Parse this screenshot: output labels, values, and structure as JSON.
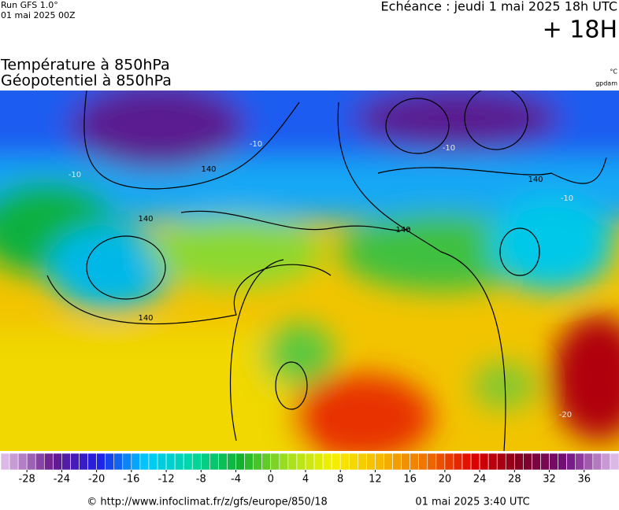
{
  "header": {
    "run": "Run GFS 1.0°",
    "run_date": "01 mai 2025 00Z",
    "valid": "Echéance : jeudi 1 mai 2025 18h UTC",
    "step": "+ 18H"
  },
  "titles": {
    "line1": "Température à 850hPa",
    "line2": "Géopotentiel à 850hPa",
    "unit1": "°C",
    "unit2": "gpdam"
  },
  "contour_labels": [
    "140",
    "140",
    "140",
    "140",
    "140",
    "-10",
    "-10",
    "-10",
    "-10",
    "-20"
  ],
  "colorbar": {
    "range": [
      -31,
      40
    ],
    "ticks": [
      -28,
      -24,
      -20,
      -16,
      -12,
      -8,
      -4,
      0,
      4,
      8,
      12,
      16,
      20,
      24,
      28,
      32,
      36
    ],
    "colors": [
      "#dcb8e6",
      "#6a1b8a",
      "#1e1ee6",
      "#00c8ff",
      "#00d8a0",
      "#12b030",
      "#a0e020",
      "#f7f000",
      "#f5b800",
      "#f07000",
      "#e00000",
      "#800020",
      "#701080",
      "#dcb8e6"
    ]
  },
  "footer": {
    "source": "© http://www.infoclimat.fr/z/gfs/europe/850/18",
    "date": "01 mai 2025  3:40 UTC"
  }
}
